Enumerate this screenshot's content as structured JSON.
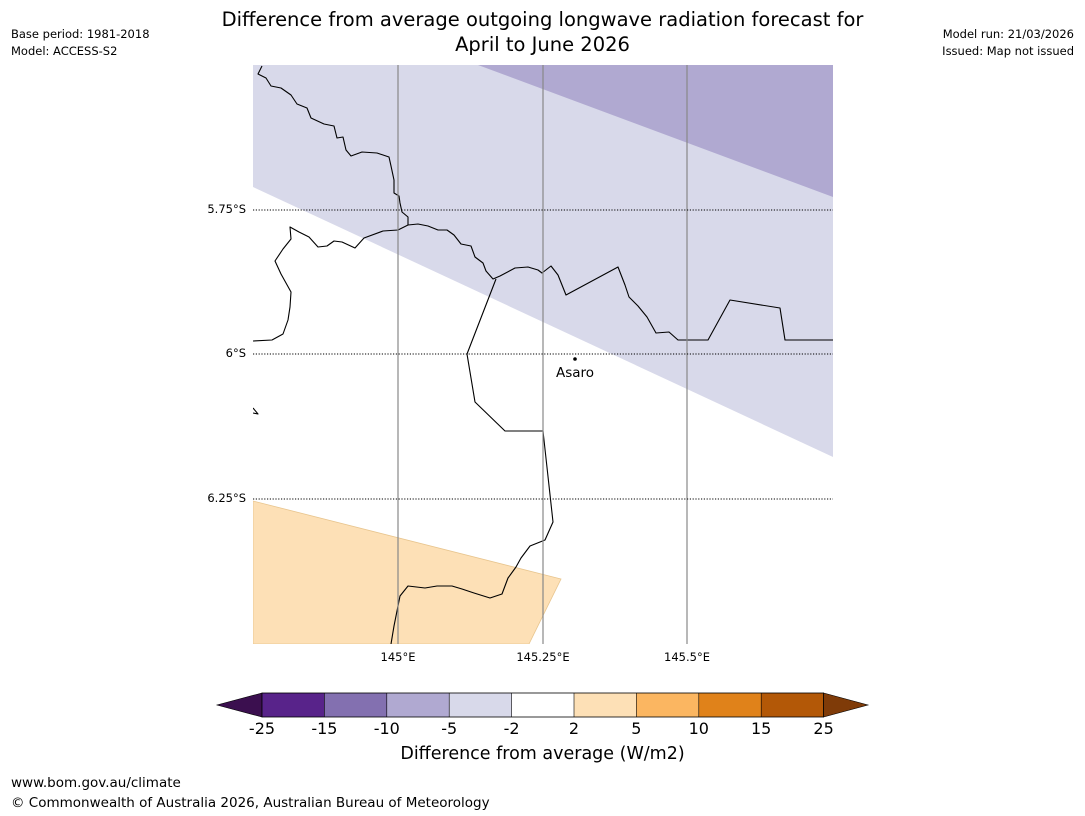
{
  "title": {
    "line1": "Difference from average outgoing longwave radiation forecast for",
    "line2": "April to June 2026"
  },
  "meta_left": {
    "base_period": "Base period: 1981-2018",
    "model": "Model: ACCESS-S2"
  },
  "meta_right": {
    "model_run": "Model run: 21/03/2026",
    "issued": "Issued: Map not issued"
  },
  "map": {
    "latitude_labels": [
      "5.75°S",
      "6°S",
      "6.25°S"
    ],
    "longitude_labels": [
      "145°E",
      "145.25°E",
      "145.5°E"
    ],
    "place": {
      "name": "Asaro"
    }
  },
  "colorbar": {
    "title": "Difference from average (W/m2)",
    "tick_labels": [
      "-25",
      "-15",
      "-10",
      "-5",
      "-2",
      "2",
      "5",
      "10",
      "15",
      "25"
    ],
    "colors": {
      "under": "#3b0f4f",
      "bins": [
        "#58238a",
        "#8370b0",
        "#b0a9d1",
        "#d8d9ea",
        "#ffffff",
        "#fde0b6",
        "#fbb661",
        "#e0821a",
        "#b35807"
      ],
      "over": "#7f3b08"
    }
  },
  "footer": {
    "url": "www.bom.gov.au/climate",
    "copyright": "© Commonwealth of Australia 2026, Australian Bureau of Meteorology"
  }
}
